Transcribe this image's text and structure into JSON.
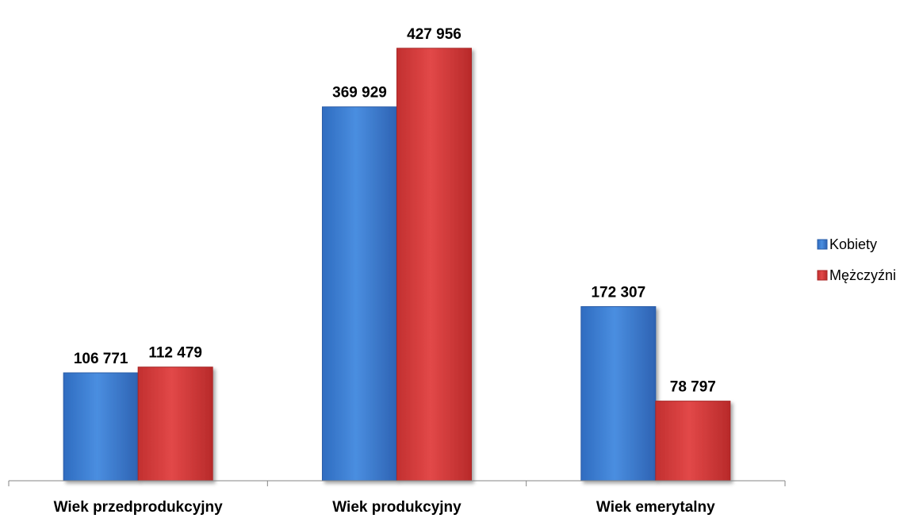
{
  "chart_data": {
    "type": "bar",
    "title": "",
    "xlabel": "",
    "ylabel": "",
    "categories": [
      "Wiek przedprodukcyjny",
      "Wiek produkcyjny",
      "Wiek emerytalny"
    ],
    "series": [
      {
        "name": "Kobiety",
        "color": "#3d7fd4",
        "values": [
          106771,
          369929,
          172307
        ],
        "labels": [
          "106 771",
          "369 929",
          "172 307"
        ]
      },
      {
        "name": "Mężczyźni",
        "color": "#d63f3f",
        "values": [
          112479,
          427956,
          78797
        ],
        "labels": [
          "112 479",
          "427 956",
          "78 797"
        ]
      }
    ],
    "ylim": [
      0,
      460000
    ],
    "grid": false,
    "legend_position": "right"
  }
}
